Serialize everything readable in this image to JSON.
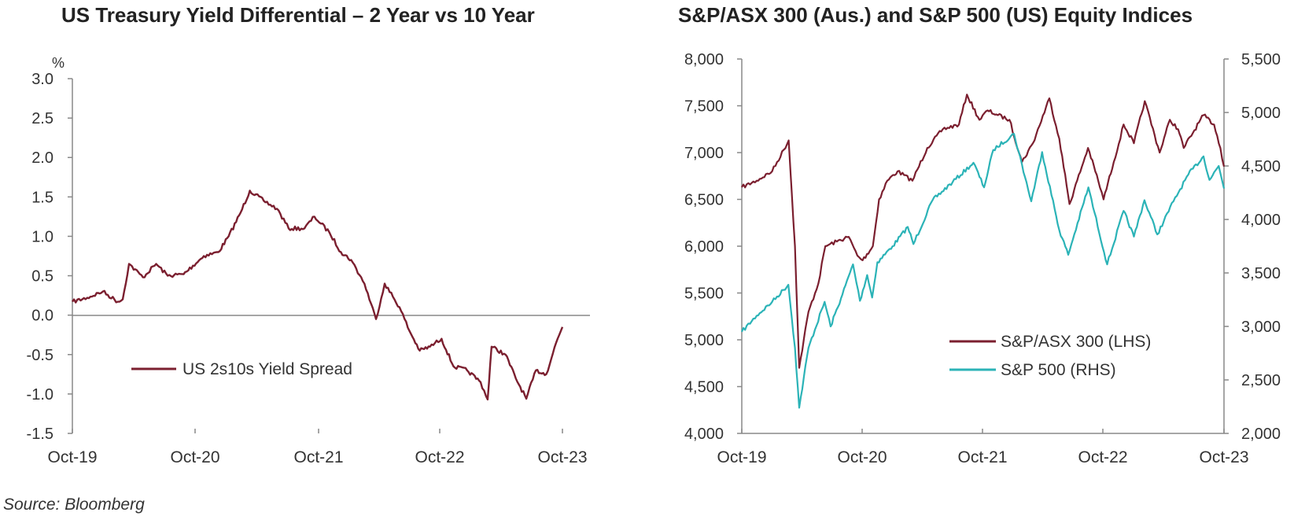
{
  "source": "Source: Bloomberg",
  "colors": {
    "maroon": "#7b1f2f",
    "teal": "#2bb3b7",
    "axis": "#888888"
  },
  "chart_data": [
    {
      "type": "line",
      "title": "US Treasury Yield Differential – 2 Year vs 10 Year",
      "ylabel": "%",
      "xlabel": "",
      "x_ticks": [
        "Oct-19",
        "Oct-20",
        "Oct-21",
        "Oct-22",
        "Oct-23"
      ],
      "y_ticks": [
        "3.0",
        "2.5",
        "2.0",
        "1.5",
        "1.0",
        "0.5",
        "0.0",
        "-0.5",
        "-1.0",
        "-1.5"
      ],
      "ylim": [
        -1.5,
        3.0
      ],
      "xlim": [
        "2019-10-01",
        "2023-10-20"
      ],
      "legend": "left",
      "grid": false,
      "series": [
        {
          "name": "US 2s10s Yield Spread",
          "color": "#7b1f2f",
          "points": [
            [
              "2019-10-01",
              0.17
            ],
            [
              "2019-11-15",
              0.22
            ],
            [
              "2020-01-01",
              0.3
            ],
            [
              "2020-02-15",
              0.17
            ],
            [
              "2020-03-01",
              0.2
            ],
            [
              "2020-03-20",
              0.65
            ],
            [
              "2020-05-01",
              0.48
            ],
            [
              "2020-06-10",
              0.65
            ],
            [
              "2020-07-15",
              0.5
            ],
            [
              "2020-09-01",
              0.52
            ],
            [
              "2020-11-01",
              0.75
            ],
            [
              "2020-12-15",
              0.8
            ],
            [
              "2021-01-15",
              1.0
            ],
            [
              "2021-02-20",
              1.3
            ],
            [
              "2021-03-20",
              1.58
            ],
            [
              "2021-05-01",
              1.45
            ],
            [
              "2021-06-10",
              1.35
            ],
            [
              "2021-07-15",
              1.1
            ],
            [
              "2021-09-01",
              1.1
            ],
            [
              "2021-10-01",
              1.25
            ],
            [
              "2021-11-15",
              1.05
            ],
            [
              "2021-12-20",
              0.8
            ],
            [
              "2022-01-20",
              0.7
            ],
            [
              "2022-03-01",
              0.4
            ],
            [
              "2022-04-05",
              -0.05
            ],
            [
              "2022-05-01",
              0.4
            ],
            [
              "2022-06-15",
              0.1
            ],
            [
              "2022-07-15",
              -0.2
            ],
            [
              "2022-08-15",
              -0.45
            ],
            [
              "2022-09-15",
              -0.4
            ],
            [
              "2022-10-20",
              -0.3
            ],
            [
              "2022-11-25",
              -0.65
            ],
            [
              "2023-01-05",
              -0.7
            ],
            [
              "2023-02-15",
              -0.85
            ],
            [
              "2023-03-08",
              -1.07
            ],
            [
              "2023-03-20",
              -0.4
            ],
            [
              "2023-05-01",
              -0.5
            ],
            [
              "2023-06-01",
              -0.8
            ],
            [
              "2023-07-03",
              -1.06
            ],
            [
              "2023-08-01",
              -0.7
            ],
            [
              "2023-09-01",
              -0.75
            ],
            [
              "2023-10-01",
              -0.35
            ],
            [
              "2023-10-20",
              -0.15
            ]
          ]
        }
      ]
    },
    {
      "type": "line",
      "title": "S&P/ASX 300 (Aus.) and S&P 500 (US) Equity Indices",
      "xlabel": "",
      "x_ticks": [
        "Oct-19",
        "Oct-20",
        "Oct-21",
        "Oct-22",
        "Oct-23"
      ],
      "y_ticks_left": [
        "8,000",
        "7,500",
        "7,000",
        "6,500",
        "6,000",
        "5,500",
        "5,000",
        "4,500",
        "4,000"
      ],
      "y_ticks_right": [
        "5,500",
        "5,000",
        "4,500",
        "4,000",
        "3,500",
        "3,000",
        "2,500",
        "2,000"
      ],
      "ylim_left": [
        4000,
        8000
      ],
      "ylim_right": [
        2000,
        5500
      ],
      "xlim": [
        "2019-10-01",
        "2023-10-01"
      ],
      "legend": "bottom-right",
      "grid": false,
      "series": [
        {
          "name": "S&P/ASX 300 (LHS)",
          "axis": "left",
          "color": "#7b1f2f",
          "points": [
            [
              "2019-10-01",
              6630
            ],
            [
              "2019-11-15",
              6700
            ],
            [
              "2020-01-01",
              6800
            ],
            [
              "2020-02-20",
              7130
            ],
            [
              "2020-03-10",
              6000
            ],
            [
              "2020-03-23",
              4700
            ],
            [
              "2020-04-20",
              5300
            ],
            [
              "2020-05-20",
              5600
            ],
            [
              "2020-06-10",
              6000
            ],
            [
              "2020-07-15",
              6050
            ],
            [
              "2020-08-20",
              6100
            ],
            [
              "2020-09-15",
              5900
            ],
            [
              "2020-10-01",
              5850
            ],
            [
              "2020-11-01",
              6000
            ],
            [
              "2020-11-20",
              6500
            ],
            [
              "2020-12-15",
              6700
            ],
            [
              "2021-01-15",
              6800
            ],
            [
              "2021-03-01",
              6700
            ],
            [
              "2021-04-15",
              7050
            ],
            [
              "2021-06-01",
              7250
            ],
            [
              "2021-07-20",
              7300
            ],
            [
              "2021-08-13",
              7620
            ],
            [
              "2021-09-20",
              7350
            ],
            [
              "2021-10-15",
              7450
            ],
            [
              "2021-11-15",
              7400
            ],
            [
              "2021-12-20",
              7350
            ],
            [
              "2022-01-27",
              6900
            ],
            [
              "2022-03-01",
              7100
            ],
            [
              "2022-04-20",
              7580
            ],
            [
              "2022-05-20",
              7150
            ],
            [
              "2022-06-20",
              6450
            ],
            [
              "2022-08-15",
              7050
            ],
            [
              "2022-09-15",
              6700
            ],
            [
              "2022-10-01",
              6500
            ],
            [
              "2022-11-01",
              6900
            ],
            [
              "2022-12-01",
              7300
            ],
            [
              "2023-01-01",
              7100
            ],
            [
              "2023-02-03",
              7550
            ],
            [
              "2023-03-20",
              7000
            ],
            [
              "2023-04-20",
              7350
            ],
            [
              "2023-05-15",
              7250
            ],
            [
              "2023-06-01",
              7050
            ],
            [
              "2023-07-31",
              7400
            ],
            [
              "2023-09-01",
              7300
            ],
            [
              "2023-09-20",
              7050
            ],
            [
              "2023-10-01",
              6850
            ]
          ]
        },
        {
          "name": "S&P 500 (RHS)",
          "axis": "right",
          "color": "#2bb3b7",
          "points": [
            [
              "2019-10-01",
              2950
            ],
            [
              "2019-11-15",
              3100
            ],
            [
              "2020-01-01",
              3230
            ],
            [
              "2020-02-19",
              3390
            ],
            [
              "2020-03-10",
              2800
            ],
            [
              "2020-03-23",
              2240
            ],
            [
              "2020-04-20",
              2800
            ],
            [
              "2020-06-08",
              3230
            ],
            [
              "2020-06-26",
              3000
            ],
            [
              "2020-08-01",
              3300
            ],
            [
              "2020-09-02",
              3580
            ],
            [
              "2020-09-23",
              3240
            ],
            [
              "2020-10-15",
              3480
            ],
            [
              "2020-10-30",
              3270
            ],
            [
              "2020-11-15",
              3600
            ],
            [
              "2020-12-31",
              3750
            ],
            [
              "2021-02-15",
              3930
            ],
            [
              "2021-03-04",
              3770
            ],
            [
              "2021-05-01",
              4180
            ],
            [
              "2021-07-01",
              4350
            ],
            [
              "2021-09-02",
              4530
            ],
            [
              "2021-10-04",
              4300
            ],
            [
              "2021-11-01",
              4650
            ],
            [
              "2022-01-03",
              4800
            ],
            [
              "2022-02-24",
              4170
            ],
            [
              "2022-03-29",
              4630
            ],
            [
              "2022-05-20",
              3900
            ],
            [
              "2022-06-16",
              3670
            ],
            [
              "2022-08-16",
              4300
            ],
            [
              "2022-10-12",
              3580
            ],
            [
              "2022-12-01",
              4080
            ],
            [
              "2023-01-01",
              3840
            ],
            [
              "2023-02-02",
              4180
            ],
            [
              "2023-03-13",
              3860
            ],
            [
              "2023-05-01",
              4170
            ],
            [
              "2023-06-15",
              4420
            ],
            [
              "2023-07-31",
              4590
            ],
            [
              "2023-08-18",
              4370
            ],
            [
              "2023-09-15",
              4500
            ],
            [
              "2023-10-01",
              4290
            ]
          ]
        }
      ]
    }
  ]
}
